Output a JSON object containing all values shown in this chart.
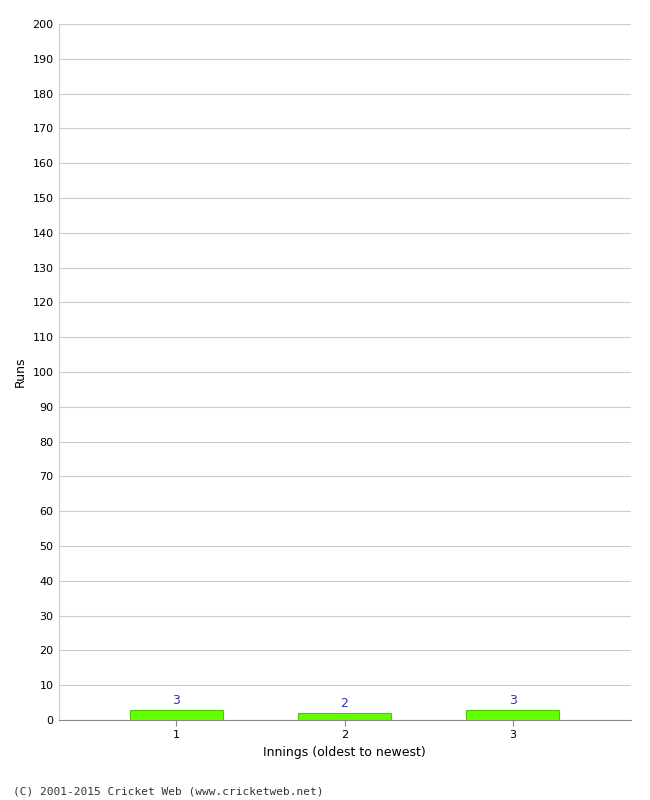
{
  "title": "",
  "xlabel": "Innings (oldest to newest)",
  "ylabel": "Runs",
  "categories": [
    1,
    2,
    3
  ],
  "values": [
    3,
    2,
    3
  ],
  "bar_color": "#66ff00",
  "bar_edge_color": "#44cc00",
  "value_labels": [
    "3",
    "2",
    "3"
  ],
  "value_label_color": "#3333bb",
  "ylim": [
    0,
    200
  ],
  "yticks": [
    0,
    10,
    20,
    30,
    40,
    50,
    60,
    70,
    80,
    90,
    100,
    110,
    120,
    130,
    140,
    150,
    160,
    170,
    180,
    190,
    200
  ],
  "xticks": [
    1,
    2,
    3
  ],
  "grid_color": "#cccccc",
  "background_color": "#ffffff",
  "footer": "(C) 2001-2015 Cricket Web (www.cricketweb.net)",
  "axis_label_fontsize": 9,
  "tick_fontsize": 8,
  "value_label_fontsize": 9,
  "footer_fontsize": 8,
  "bar_width": 0.55
}
